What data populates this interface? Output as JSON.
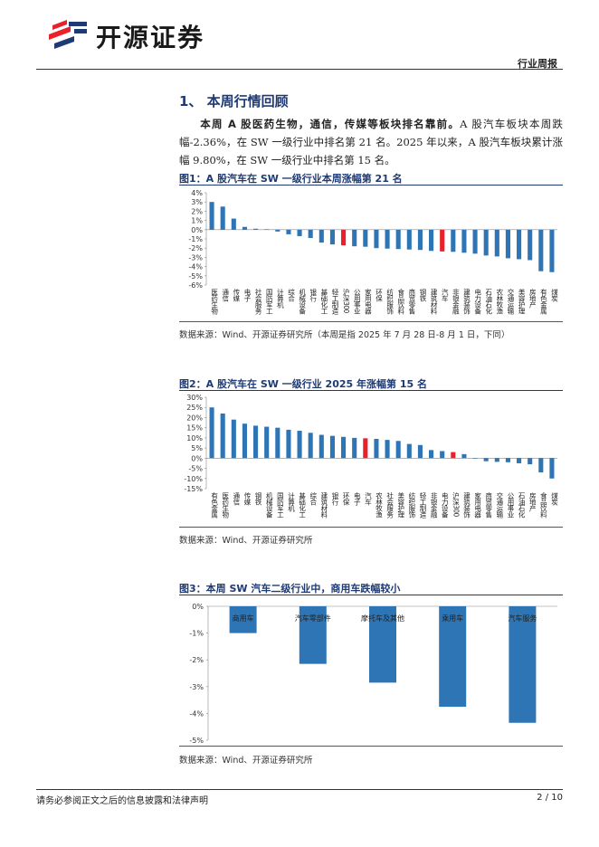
{
  "header": {
    "brand": "开源证券",
    "report_type": "行业周报"
  },
  "section": {
    "title": "1、 本周行情回顾",
    "lead_bold": "本周 A 股医药生物，通信，传媒等板块排名靠前。",
    "text": "A 股汽车板块本周跌幅-2.36%，在 SW 一级行业中排名第 21 名。2025 年以来，A 股汽车板块累计涨幅 9.80%，在 SW 一级行业中排名第 15 名。"
  },
  "figures": [
    {
      "title": "图1：A 股汽车在 SW 一级行业本周涨幅第 21 名",
      "source": "数据来源：Wind、开源证券研究所（本周是指 2025 年 7 月 28 日-8 月 1 日，下同）"
    },
    {
      "title": "图2：A 股汽车在 SW 一级行业 2025 年涨幅第 15 名",
      "source": "数据来源：Wind、开源证券研究所"
    },
    {
      "title": "图3：本周 SW 汽车二级行业中，商用车跌幅较小",
      "source": "数据来源：Wind、开源证券研究所"
    }
  ],
  "colors": {
    "bar": "#2E75B6",
    "highlight": "#E8212B",
    "title": "#1f3a73"
  },
  "chart_data": [
    {
      "type": "bar",
      "title": "",
      "ylim": [
        -6,
        4
      ],
      "yticks": [
        4,
        3,
        2,
        1,
        0,
        -1,
        -2,
        -3,
        -4,
        -5,
        -6
      ],
      "ytick_labels": [
        "4%",
        "3%",
        "2%",
        "1%",
        "0%",
        "-1%",
        "-2%",
        "-3%",
        "-4%",
        "-5%",
        "-6%"
      ],
      "categories": [
        "医药生物",
        "通信",
        "传媒",
        "电子",
        "社会服务",
        "国防军工",
        "计算机",
        "综合",
        "机械设备",
        "银行",
        "基础化工",
        "轻工制造",
        "沪深300",
        "公用事业",
        "家用电器",
        "环保",
        "纺织服饰",
        "食品饮料",
        "商贸零售",
        "钢铁",
        "建筑材料",
        "汽车",
        "非银金融",
        "建筑装饰",
        "电力设备",
        "石油石化",
        "农林牧渔",
        "交通运输",
        "美容护理",
        "房地产",
        "有色金属",
        "煤炭"
      ],
      "values": [
        3.0,
        2.5,
        1.2,
        0.3,
        0.1,
        0.05,
        -0.2,
        -0.5,
        -0.7,
        -0.9,
        -1.4,
        -1.6,
        -1.7,
        -1.8,
        -1.85,
        -2.0,
        -2.05,
        -2.1,
        -2.15,
        -2.2,
        -2.3,
        -2.36,
        -2.4,
        -2.5,
        -2.6,
        -2.8,
        -2.9,
        -3.1,
        -3.2,
        -3.3,
        -4.5,
        -4.6
      ],
      "highlight": [
        "沪深300",
        "汽车"
      ]
    },
    {
      "type": "bar",
      "title": "",
      "ylim": [
        -15,
        30
      ],
      "yticks": [
        30,
        25,
        20,
        15,
        10,
        5,
        0,
        -5,
        -10,
        -15
      ],
      "ytick_labels": [
        "30%",
        "25%",
        "20%",
        "15%",
        "10%",
        "5%",
        "0%",
        "-5%",
        "-10%",
        "-15%"
      ],
      "categories": [
        "有色金属",
        "医药生物",
        "通信",
        "传媒",
        "钢铁",
        "机械设备",
        "国防军工",
        "计算机",
        "基础化工",
        "综合",
        "建筑材料",
        "银行",
        "环保",
        "电子",
        "汽车",
        "农林牧渔",
        "社会服务",
        "美容护理",
        "纺织服饰",
        "轻工制造",
        "非银金融",
        "电力设备",
        "沪深300",
        "建筑装饰",
        "家用电器",
        "商贸零售",
        "交通运输",
        "公用事业",
        "石油石化",
        "房地产",
        "食品饮料",
        "煤炭"
      ],
      "values": [
        25.0,
        22.0,
        19.0,
        17.0,
        16.0,
        15.5,
        15.0,
        14.0,
        13.5,
        12.5,
        11.5,
        11.0,
        10.5,
        10.0,
        9.8,
        9.5,
        9.0,
        8.5,
        7.0,
        6.5,
        4.0,
        3.5,
        3.0,
        2.0,
        0.0,
        -1.5,
        -1.8,
        -2.0,
        -2.5,
        -3.0,
        -7.0,
        -10.0
      ],
      "highlight": [
        "汽车",
        "沪深300"
      ]
    },
    {
      "type": "bar",
      "title": "",
      "ylim": [
        -5,
        0
      ],
      "yticks": [
        0,
        -1,
        -2,
        -3,
        -4,
        -5
      ],
      "ytick_labels": [
        "0%",
        "-1%",
        "-2%",
        "-3%",
        "-4%",
        "-5%"
      ],
      "categories": [
        "商用车",
        "汽车零部件",
        "摩托车及其他",
        "乘用车",
        "汽车服务"
      ],
      "values": [
        -1.0,
        -2.15,
        -2.85,
        -3.75,
        -4.35
      ],
      "highlight": []
    }
  ],
  "footer": {
    "disclaimer": "请务必参阅正文之后的信息披露和法律声明",
    "page": "2 / 10"
  }
}
